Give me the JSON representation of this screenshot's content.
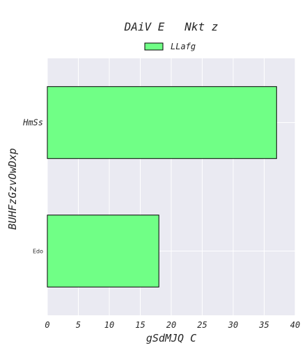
{
  "chart_data": {
    "type": "bar",
    "orientation": "horizontal",
    "title": "DAiV E   Nkt z",
    "xlabel": "gSdMJQ C",
    "ylabel": "BUHFzGzvOwDxp",
    "categories": [
      "HmSs",
      "Edo"
    ],
    "series": [
      {
        "name": "LLafg",
        "values": [
          37,
          18
        ]
      }
    ],
    "xlim": [
      0,
      40
    ],
    "xticks": [
      0,
      5,
      10,
      15,
      20,
      25,
      30,
      35,
      40
    ],
    "grid": true,
    "legend_position": "top-center",
    "colors": {
      "bar": "#70ff86",
      "bar_edge": "#000000",
      "plot_background": "#eaeaf2",
      "grid": "#ffffff"
    }
  }
}
